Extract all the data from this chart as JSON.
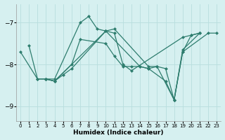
{
  "xlabel": "Humidex (Indice chaleur)",
  "background_color": "#d6f0f0",
  "line_color": "#2e7d6e",
  "grid_color": "#b8dede",
  "xlim": [
    -0.5,
    23.5
  ],
  "ylim": [
    -9.35,
    -6.55
  ],
  "yticks": [
    -9,
    -8,
    -7
  ],
  "xticks": [
    0,
    1,
    2,
    3,
    4,
    5,
    6,
    7,
    8,
    9,
    10,
    11,
    12,
    13,
    14,
    15,
    16,
    17,
    18,
    19,
    20,
    21,
    22,
    23
  ],
  "series": [
    {
      "x": [
        0,
        2,
        3,
        4,
        7,
        8,
        9,
        10,
        11,
        12,
        13,
        19,
        20,
        21
      ],
      "y": [
        -7.7,
        -8.35,
        -8.35,
        -8.35,
        -7.0,
        -6.85,
        -7.15,
        -7.2,
        -7.25,
        -8.0,
        -8.15,
        -7.35,
        -7.3,
        -7.25
      ]
    },
    {
      "x": [
        1,
        2,
        3,
        4,
        6,
        7,
        10,
        11,
        12,
        13,
        14,
        15,
        17,
        18,
        19,
        20,
        21
      ],
      "y": [
        -7.55,
        -8.35,
        -8.35,
        -8.4,
        -8.0,
        -7.4,
        -7.5,
        -7.8,
        -8.05,
        -8.05,
        -8.05,
        -8.1,
        -8.4,
        -8.85,
        -7.7,
        -7.3,
        -7.25
      ]
    },
    {
      "x": [
        3,
        4,
        5,
        6,
        10,
        14,
        15,
        16,
        17,
        18,
        19,
        22,
        23
      ],
      "y": [
        -8.35,
        -8.4,
        -8.25,
        -8.1,
        -7.2,
        -8.05,
        -8.1,
        -8.05,
        -8.1,
        -8.85,
        -7.7,
        -7.25,
        -7.25
      ]
    },
    {
      "x": [
        3,
        4,
        10,
        11,
        15,
        16,
        18,
        19,
        21
      ],
      "y": [
        -8.35,
        -8.4,
        -7.2,
        -7.15,
        -8.05,
        -8.05,
        -8.85,
        -7.65,
        -7.25
      ]
    }
  ]
}
